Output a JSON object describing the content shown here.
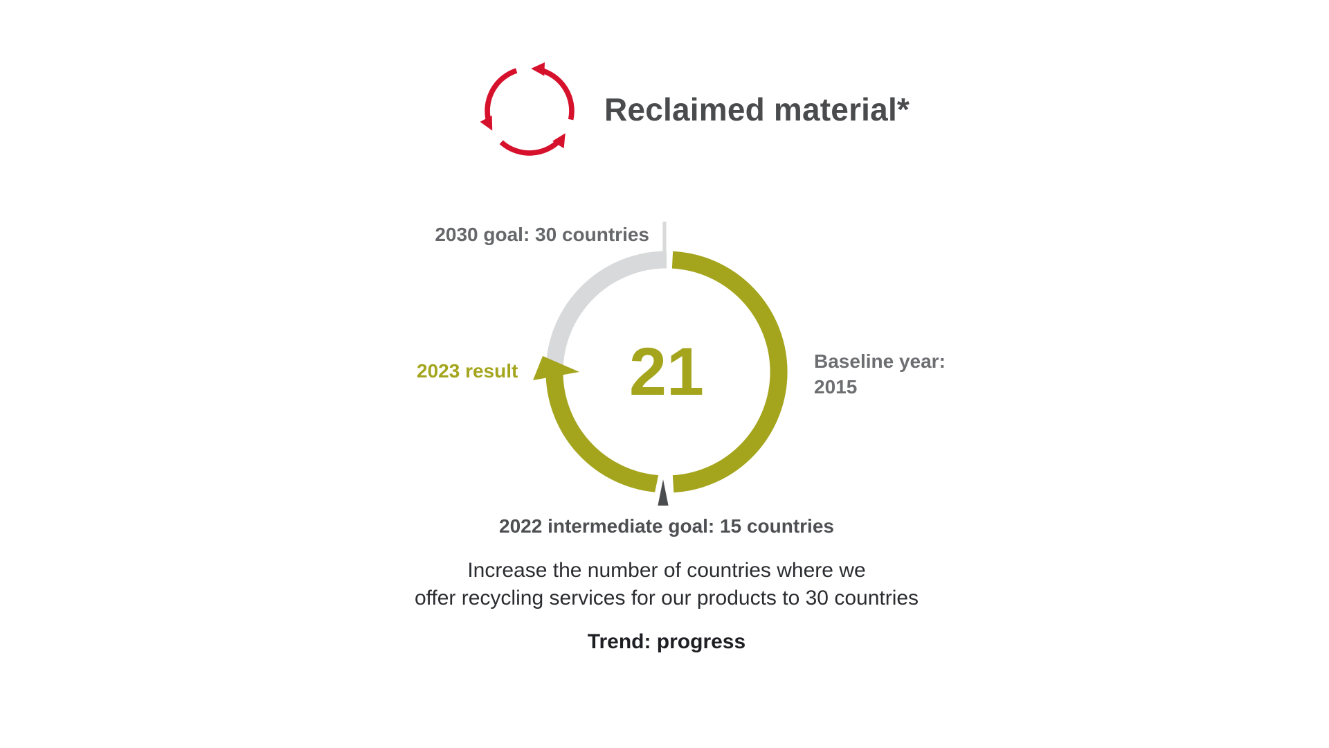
{
  "header": {
    "title": "Reclaimed material*",
    "icon": "recycle-arrows-icon"
  },
  "gauge": {
    "center_value": "21",
    "goal_label": "2030 goal: 30 countries",
    "result_label": "2023 result",
    "baseline_label_line1": "Baseline year:",
    "baseline_label_line2": "2015",
    "intermediate_label": "2022 intermediate goal: 15 countries"
  },
  "description": {
    "line1": "Increase the number of countries where we",
    "line2": "offer recycling services for our products to 30 countries"
  },
  "trend": {
    "label": "Trend: progress"
  },
  "colors": {
    "olive": "#A4A51D",
    "red": "#D6112C",
    "track-gray": "#D8D9DA",
    "marker-dark": "#4B4C4E"
  },
  "chart_data": {
    "type": "gauge",
    "title": "Reclaimed material*",
    "result_2023": 21,
    "goal_2030_countries": 30,
    "intermediate_goal_2022_countries": 15,
    "baseline_year": 2015,
    "trend": "progress",
    "progress_fraction": 0.7,
    "gauge_geometry": {
      "arc_start_deg_cw_from_top": 3,
      "arc_end_deg_cw_from_top": 272,
      "bottom_marker_gap_deg": [
        176.6,
        183.4
      ],
      "tick_deg_cw_from_top": 0
    }
  }
}
